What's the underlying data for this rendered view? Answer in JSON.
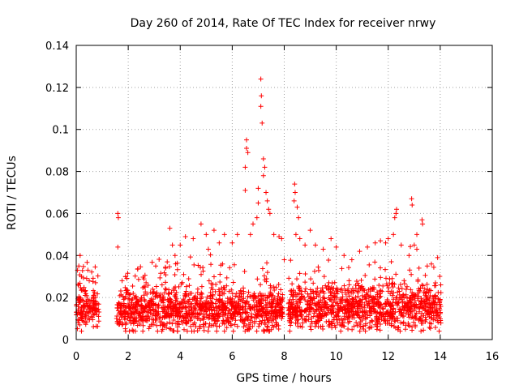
{
  "chart_data": {
    "type": "scatter",
    "title": "Day 260 of 2014, Rate Of TEC Index for receiver nrwy",
    "xlabel": "GPS time / hours",
    "ylabel": "ROTI / TECUs",
    "xlim": [
      0,
      16
    ],
    "ylim": [
      0,
      0.14
    ],
    "xticks": [
      0,
      2,
      4,
      6,
      8,
      10,
      12,
      14,
      16
    ],
    "yticks": [
      0,
      0.02,
      0.04,
      0.06,
      0.08,
      0.1,
      0.12,
      0.14
    ],
    "xtick_labels": [
      "0",
      "2",
      "4",
      "6",
      "8",
      "10",
      "12",
      "14",
      "16"
    ],
    "ytick_labels": [
      "0",
      "0.02",
      "0.04",
      "0.06",
      "0.08",
      "0.1",
      "0.12",
      "0.14"
    ],
    "grid": true,
    "marker": "+",
    "color": "#ff0000",
    "series": [
      {
        "name": "ROTI",
        "segments": [
          {
            "x_start": 0.0,
            "x_end": 0.88,
            "base": 0.015,
            "spread": 0.008
          },
          {
            "x_start": 1.55,
            "x_end": 7.95,
            "base": 0.014,
            "spread": 0.01
          },
          {
            "x_start": 8.15,
            "x_end": 14.05,
            "base": 0.015,
            "spread": 0.01
          }
        ],
        "points": [
          {
            "x": 0.05,
            "y": 0.033
          },
          {
            "x": 0.1,
            "y": 0.035
          },
          {
            "x": 0.15,
            "y": 0.04
          },
          {
            "x": 0.2,
            "y": 0.03
          },
          {
            "x": 0.45,
            "y": 0.033
          },
          {
            "x": 0.5,
            "y": 0.028
          },
          {
            "x": 1.6,
            "y": 0.06
          },
          {
            "x": 1.62,
            "y": 0.058
          },
          {
            "x": 1.6,
            "y": 0.044
          },
          {
            "x": 1.9,
            "y": 0.03
          },
          {
            "x": 2.0,
            "y": 0.022
          },
          {
            "x": 3.5,
            "y": 0.037
          },
          {
            "x": 3.6,
            "y": 0.053
          },
          {
            "x": 3.7,
            "y": 0.045
          },
          {
            "x": 3.8,
            "y": 0.04
          },
          {
            "x": 4.0,
            "y": 0.045
          },
          {
            "x": 4.2,
            "y": 0.049
          },
          {
            "x": 4.5,
            "y": 0.048
          },
          {
            "x": 4.8,
            "y": 0.055
          },
          {
            "x": 5.0,
            "y": 0.05
          },
          {
            "x": 5.3,
            "y": 0.052
          },
          {
            "x": 5.5,
            "y": 0.046
          },
          {
            "x": 5.7,
            "y": 0.05
          },
          {
            "x": 6.0,
            "y": 0.046
          },
          {
            "x": 6.2,
            "y": 0.05
          },
          {
            "x": 6.5,
            "y": 0.082
          },
          {
            "x": 6.55,
            "y": 0.091
          },
          {
            "x": 6.55,
            "y": 0.095
          },
          {
            "x": 6.6,
            "y": 0.089
          },
          {
            "x": 6.5,
            "y": 0.071
          },
          {
            "x": 6.7,
            "y": 0.05
          },
          {
            "x": 6.8,
            "y": 0.055
          },
          {
            "x": 7.0,
            "y": 0.072
          },
          {
            "x": 7.1,
            "y": 0.124
          },
          {
            "x": 7.12,
            "y": 0.116
          },
          {
            "x": 7.1,
            "y": 0.111
          },
          {
            "x": 7.15,
            "y": 0.103
          },
          {
            "x": 7.2,
            "y": 0.086
          },
          {
            "x": 7.25,
            "y": 0.082
          },
          {
            "x": 7.2,
            "y": 0.078
          },
          {
            "x": 7.3,
            "y": 0.07
          },
          {
            "x": 7.35,
            "y": 0.066
          },
          {
            "x": 7.4,
            "y": 0.062
          },
          {
            "x": 7.45,
            "y": 0.06
          },
          {
            "x": 7.0,
            "y": 0.065
          },
          {
            "x": 6.95,
            "y": 0.058
          },
          {
            "x": 7.6,
            "y": 0.05
          },
          {
            "x": 7.8,
            "y": 0.049
          },
          {
            "x": 7.9,
            "y": 0.048
          },
          {
            "x": 8.0,
            "y": 0.038
          },
          {
            "x": 8.4,
            "y": 0.074
          },
          {
            "x": 8.42,
            "y": 0.07
          },
          {
            "x": 8.38,
            "y": 0.066
          },
          {
            "x": 8.5,
            "y": 0.063
          },
          {
            "x": 8.55,
            "y": 0.058
          },
          {
            "x": 8.45,
            "y": 0.05
          },
          {
            "x": 8.6,
            "y": 0.048
          },
          {
            "x": 8.8,
            "y": 0.045
          },
          {
            "x": 9.0,
            "y": 0.052
          },
          {
            "x": 9.2,
            "y": 0.045
          },
          {
            "x": 9.5,
            "y": 0.043
          },
          {
            "x": 9.8,
            "y": 0.048
          },
          {
            "x": 10.0,
            "y": 0.044
          },
          {
            "x": 10.3,
            "y": 0.04
          },
          {
            "x": 10.6,
            "y": 0.038
          },
          {
            "x": 10.9,
            "y": 0.042
          },
          {
            "x": 11.2,
            "y": 0.044
          },
          {
            "x": 11.5,
            "y": 0.046
          },
          {
            "x": 11.7,
            "y": 0.047
          },
          {
            "x": 11.9,
            "y": 0.046
          },
          {
            "x": 12.0,
            "y": 0.048
          },
          {
            "x": 12.2,
            "y": 0.05
          },
          {
            "x": 12.3,
            "y": 0.06
          },
          {
            "x": 12.32,
            "y": 0.062
          },
          {
            "x": 12.25,
            "y": 0.058
          },
          {
            "x": 12.5,
            "y": 0.045
          },
          {
            "x": 12.8,
            "y": 0.04
          },
          {
            "x": 12.9,
            "y": 0.067
          },
          {
            "x": 12.92,
            "y": 0.064
          },
          {
            "x": 13.0,
            "y": 0.045
          },
          {
            "x": 13.1,
            "y": 0.05
          },
          {
            "x": 13.3,
            "y": 0.057
          },
          {
            "x": 13.32,
            "y": 0.055
          },
          {
            "x": 13.1,
            "y": 0.043
          },
          {
            "x": 13.5,
            "y": 0.035
          },
          {
            "x": 13.9,
            "y": 0.039
          }
        ]
      }
    ]
  }
}
